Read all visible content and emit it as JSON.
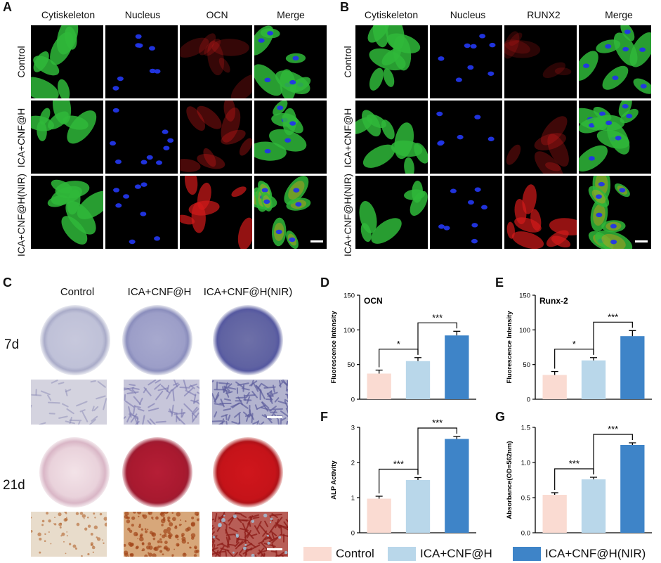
{
  "panels": {
    "A": "A",
    "B": "B",
    "C": "C",
    "D": "D",
    "E": "E",
    "F": "F",
    "G": "G"
  },
  "panel_a": {
    "columns": [
      "Cytiskeleton",
      "Nucleus",
      "OCN",
      "Merge"
    ],
    "rows": [
      "Control",
      "ICA+CNF@H",
      "ICA+CNF@H(NIR)"
    ]
  },
  "panel_b": {
    "columns": [
      "Cytiskeleton",
      "Nucleus",
      "RUNX2",
      "Merge"
    ],
    "rows": [
      "Control",
      "ICA+CNF@H",
      "ICA+CNF@H(NIR)"
    ]
  },
  "panel_c": {
    "columns": [
      "Control",
      "ICA+CNF@H",
      "ICA+CNF@H(NIR)"
    ],
    "days": [
      "7d",
      "21d"
    ]
  },
  "colors": {
    "control": "#FADBD2",
    "ica_cnf_h": "#B9D7EA",
    "ica_cnf_h_nir": "#3E84C8"
  },
  "legend": [
    "Control",
    "ICA+CNF@H",
    "ICA+CNF@H(NIR)"
  ],
  "chart_data": [
    {
      "id": "D",
      "type": "bar",
      "title": "OCN",
      "ylabel": "Fluorescence Intensity",
      "categories": [
        "Control",
        "ICA+CNF@H",
        "ICA+CNF@H(NIR)"
      ],
      "values": [
        37,
        55,
        92
      ],
      "errors": [
        5,
        5,
        6
      ],
      "ylim": [
        0,
        150
      ],
      "yticks": [
        "0",
        "50",
        "100",
        "150"
      ],
      "significance": [
        "*",
        "***"
      ]
    },
    {
      "id": "E",
      "type": "bar",
      "title": "Runx-2",
      "ylabel": "Fluorescence Intensity",
      "categories": [
        "Control",
        "ICA+CNF@H",
        "ICA+CNF@H(NIR)"
      ],
      "values": [
        35,
        56,
        91
      ],
      "errors": [
        5,
        4,
        8
      ],
      "ylim": [
        0,
        150
      ],
      "yticks": [
        "0",
        "50",
        "100",
        "150"
      ],
      "significance": [
        "*",
        "***"
      ]
    },
    {
      "id": "F",
      "type": "bar",
      "title": "",
      "ylabel": "ALP Activity",
      "categories": [
        "Control",
        "ICA+CNF@H",
        "ICA+CNF@H(NIR)"
      ],
      "values": [
        0.97,
        1.5,
        2.67
      ],
      "errors": [
        0.07,
        0.07,
        0.07
      ],
      "ylim": [
        0,
        3
      ],
      "yticks": [
        "0",
        "1",
        "2",
        "3"
      ],
      "significance": [
        "***",
        "***"
      ]
    },
    {
      "id": "G",
      "type": "bar",
      "title": "",
      "ylabel": "Absorbance(OD=562nm)",
      "categories": [
        "Control",
        "ICA+CNF@H",
        "ICA+CNF@H(NIR)"
      ],
      "values": [
        0.54,
        0.76,
        1.25
      ],
      "errors": [
        0.03,
        0.03,
        0.03
      ],
      "ylim": [
        0,
        1.5
      ],
      "yticks": [
        "0.0",
        "0.5",
        "1.0",
        "1.5"
      ],
      "significance": [
        "***",
        "***"
      ]
    }
  ]
}
